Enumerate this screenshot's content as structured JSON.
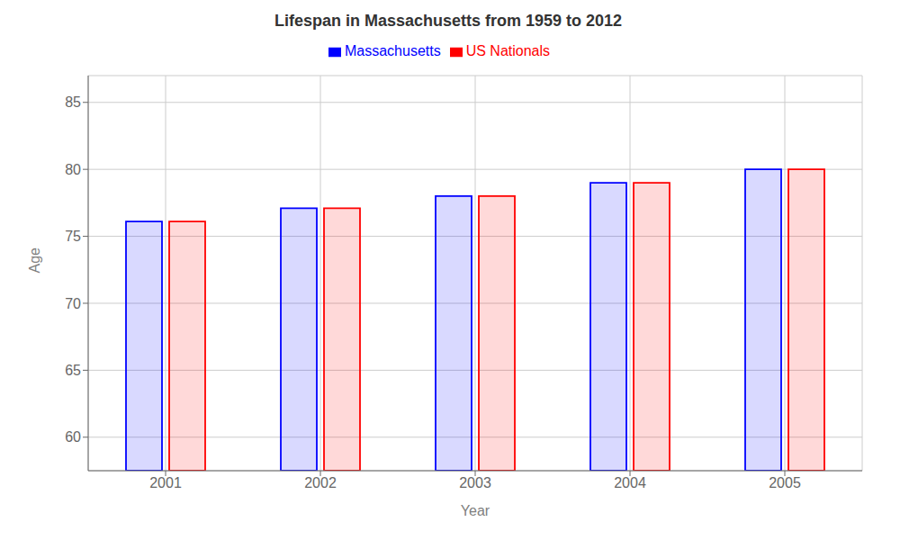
{
  "chart_data": {
    "type": "bar",
    "title": "Lifespan in Massachusetts from 1959 to 2012",
    "x_label": "Year",
    "y_label": "Age",
    "categories": [
      "2001",
      "2002",
      "2003",
      "2004",
      "2005"
    ],
    "series": [
      {
        "name": "Massachusetts",
        "color": "#0000ff",
        "values": [
          76.1,
          77.1,
          78.0,
          79.0,
          80.0
        ]
      },
      {
        "name": "US Nationals",
        "color": "#ff0000",
        "values": [
          76.1,
          77.1,
          78.0,
          79.0,
          80.0
        ]
      }
    ],
    "ylim": [
      57.5,
      87
    ],
    "yticks": [
      60,
      65,
      70,
      75,
      80,
      85
    ],
    "grid": true,
    "legend": "top"
  }
}
